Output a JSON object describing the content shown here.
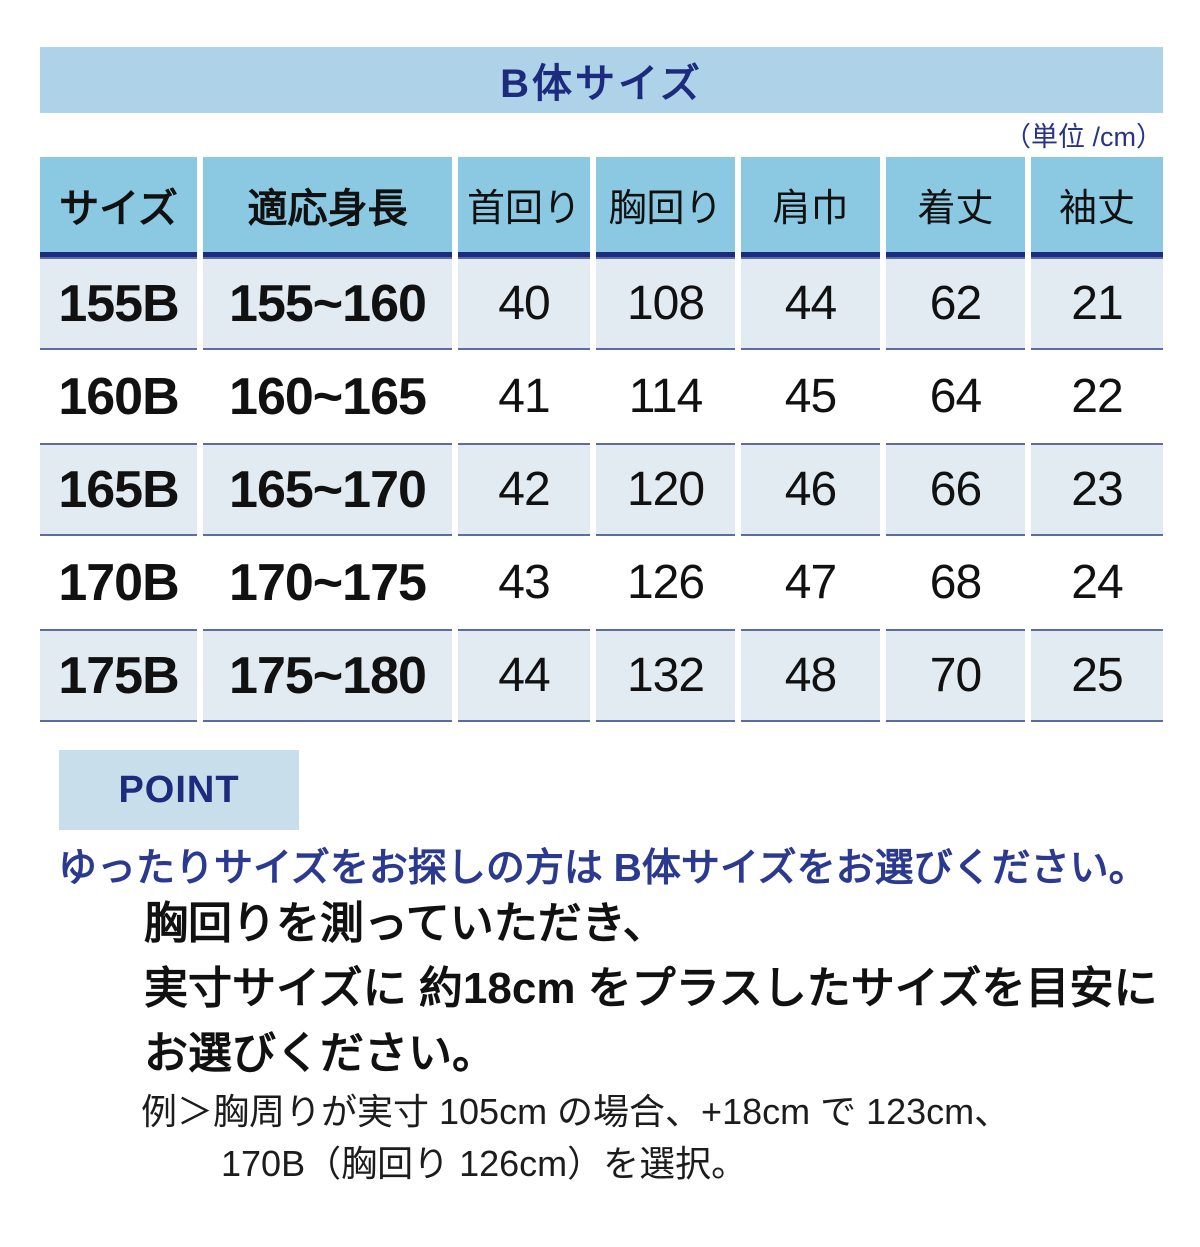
{
  "title": "B体サイズ",
  "unit_label": "（単位 /cm）",
  "table": {
    "headers": {
      "size": "サイズ",
      "height": "適応身長",
      "neck": "首回り",
      "chest": "胸回り",
      "shoulder": "肩巾",
      "length": "着丈",
      "sleeve": "袖丈"
    },
    "rows": [
      {
        "size": "155B",
        "height": "155~160",
        "neck": "40",
        "chest": "108",
        "shoulder": "44",
        "length": "62",
        "sleeve": "21"
      },
      {
        "size": "160B",
        "height": "160~165",
        "neck": "41",
        "chest": "114",
        "shoulder": "45",
        "length": "64",
        "sleeve": "22"
      },
      {
        "size": "165B",
        "height": "165~170",
        "neck": "42",
        "chest": "120",
        "shoulder": "46",
        "length": "66",
        "sleeve": "23"
      },
      {
        "size": "170B",
        "height": "170~175",
        "neck": "43",
        "chest": "126",
        "shoulder": "47",
        "length": "68",
        "sleeve": "24"
      },
      {
        "size": "175B",
        "height": "175~180",
        "neck": "44",
        "chest": "132",
        "shoulder": "48",
        "length": "70",
        "sleeve": "25"
      }
    ]
  },
  "point": {
    "badge_label": "POINT",
    "headline": "ゆったりサイズをお探しの方は B体サイズをお選びください。",
    "body_lines": [
      "胸回りを測っていただき、",
      "実寸サイズに 約18cm をプラスしたサイズを目安に",
      "お選びください。"
    ],
    "example_lines": [
      "例＞胸周りが実寸 105cm の場合、+18cm で 123cm、",
      "170B（胸回り 126cm）を選択。"
    ]
  },
  "colors": {
    "title_bar_bg": "#aed3e9",
    "header_cell_bg": "#8bc9e3",
    "shaded_row_bg": "#e2ebf2",
    "point_badge_bg": "#c8dfeb",
    "navy_dark": "#1c2b7d",
    "navy_text": "#2b3a8f",
    "row_border": "#5c6ca3"
  }
}
